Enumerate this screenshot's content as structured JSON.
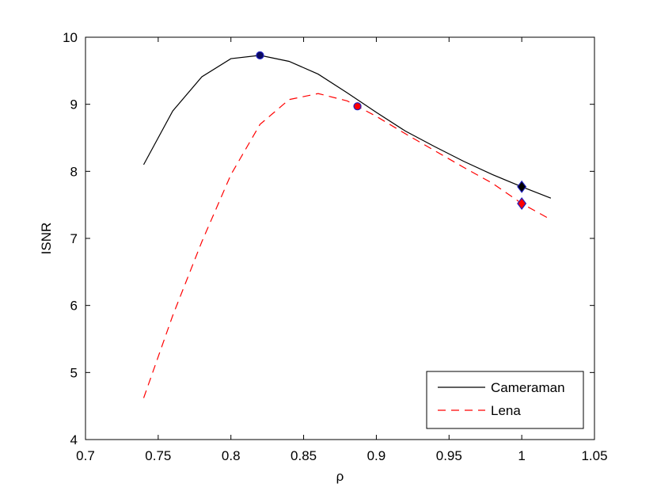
{
  "chart_data": {
    "type": "line",
    "title": "",
    "xlabel": "ρ",
    "ylabel": "ISNR",
    "xlim": [
      0.7,
      1.05
    ],
    "ylim": [
      4,
      10
    ],
    "xticks": [
      0.7,
      0.75,
      0.8,
      0.85,
      0.9,
      0.95,
      1,
      1.05
    ],
    "xtick_labels": [
      "0.7",
      "0.75",
      "0.8",
      "0.85",
      "0.9",
      "0.95",
      "1",
      "1.05"
    ],
    "yticks": [
      4,
      5,
      6,
      7,
      8,
      9,
      10
    ],
    "ytick_labels": [
      "4",
      "5",
      "6",
      "7",
      "8",
      "9",
      "10"
    ],
    "grid": false,
    "legend_position": "bottom-right",
    "series": [
      {
        "name": "Cameraman",
        "color": "#000000",
        "dash": "solid",
        "x": [
          0.74,
          0.76,
          0.78,
          0.8,
          0.82,
          0.84,
          0.86,
          0.88,
          0.9,
          0.92,
          0.94,
          0.96,
          0.98,
          1.0,
          1.02
        ],
        "y": [
          8.1,
          8.9,
          9.41,
          9.68,
          9.73,
          9.64,
          9.45,
          9.17,
          8.88,
          8.6,
          8.37,
          8.15,
          7.95,
          7.77,
          7.6
        ],
        "markers": [
          {
            "x": 0.82,
            "y": 9.73,
            "shape": "circle",
            "fill": "#0b0b5e",
            "stroke": "#1f1fbf"
          },
          {
            "x": 1.0,
            "y": 7.77,
            "shape": "diamond",
            "fill": "#000000",
            "stroke": "#1f1fbf"
          }
        ]
      },
      {
        "name": "Lena",
        "color": "#ff0000",
        "dash": "dashed",
        "x": [
          0.74,
          0.76,
          0.78,
          0.8,
          0.82,
          0.84,
          0.86,
          0.88,
          0.9,
          0.92,
          0.94,
          0.96,
          0.98,
          1.0,
          1.02
        ],
        "y": [
          4.62,
          5.85,
          6.95,
          7.95,
          8.7,
          9.07,
          9.16,
          9.05,
          8.82,
          8.56,
          8.31,
          8.06,
          7.82,
          7.52,
          7.28
        ],
        "markers": [
          {
            "x": 0.887,
            "y": 8.97,
            "shape": "circle",
            "fill": "#ff0000",
            "stroke": "#1f1fbf"
          },
          {
            "x": 1.0,
            "y": 7.52,
            "shape": "diamond",
            "fill": "#ff0000",
            "stroke": "#1f1fbf"
          }
        ]
      }
    ]
  }
}
